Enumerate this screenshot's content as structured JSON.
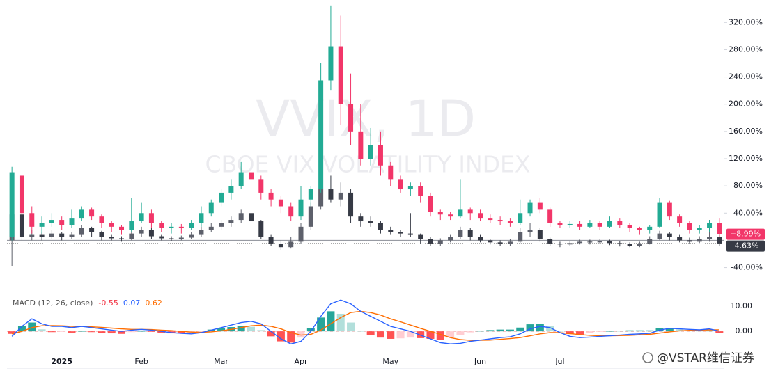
{
  "chart_data": [
    {
      "type": "candlestick",
      "watermark_title": "VVIX, 1D",
      "watermark_subtitle": "CBOE VIX VOLATILITY INDEX",
      "categories": [
        null,
        null,
        null,
        null,
        null,
        "2025",
        null,
        null,
        null,
        null,
        null,
        null,
        null,
        "Feb",
        null,
        null,
        null,
        null,
        null,
        null,
        null,
        "Mar",
        null,
        null,
        null,
        null,
        null,
        null,
        null,
        "Apr",
        null,
        null,
        null,
        null,
        null,
        null,
        null,
        null,
        "May",
        null,
        null,
        null,
        null,
        null,
        null,
        null,
        null,
        "Jun",
        null,
        null,
        null,
        null,
        null,
        null,
        null,
        "Jul",
        null,
        null,
        null,
        null,
        null,
        null,
        null,
        null,
        null,
        null,
        null,
        null,
        null,
        null,
        null,
        null
      ],
      "ylim": [
        -66,
        353
      ],
      "yticks": [
        {
          "value": 320,
          "label": "320.00%"
        },
        {
          "value": 280,
          "label": "280.00%"
        },
        {
          "value": 240,
          "label": "240.00%"
        },
        {
          "value": 200,
          "label": "200.00%"
        },
        {
          "value": 160,
          "label": "160.00%"
        },
        {
          "value": 120,
          "label": "120.00%"
        },
        {
          "value": 80,
          "label": "80.00%"
        },
        {
          "value": 40,
          "label": "40.00%"
        },
        {
          "value": -40,
          "label": "-40.00%"
        }
      ],
      "baseline": 0,
      "series": [
        {
          "up_color": "#22ab94",
          "down_color": "#f23669",
          "label_color": "#f23669",
          "price_label": "+8.99%",
          "open": [
            5,
            95,
            40,
            20,
            25,
            30,
            22,
            32,
            45,
            35,
            25,
            20,
            15,
            28,
            40,
            25,
            18,
            20,
            18,
            25,
            40,
            55,
            70,
            80,
            100,
            90,
            70,
            60,
            50,
            35,
            60,
            75,
            235,
            285,
            200,
            160,
            120,
            140,
            110,
            90,
            75,
            80,
            65,
            42,
            38,
            35,
            45,
            40,
            32,
            30,
            28,
            25,
            40,
            55,
            45,
            25,
            22,
            24,
            20,
            25,
            20,
            28,
            22,
            18,
            15,
            20,
            55,
            35,
            25,
            15,
            18,
            25
          ],
          "high": [
            108,
            95,
            50,
            35,
            40,
            35,
            45,
            50,
            48,
            38,
            28,
            22,
            62,
            55,
            45,
            28,
            25,
            24,
            30,
            50,
            60,
            75,
            90,
            115,
            105,
            95,
            75,
            65,
            55,
            80,
            80,
            260,
            345,
            330,
            245,
            200,
            165,
            160,
            115,
            95,
            85,
            85,
            70,
            45,
            42,
            90,
            48,
            45,
            38,
            35,
            32,
            60,
            60,
            62,
            48,
            28,
            28,
            28,
            30,
            28,
            35,
            32,
            25,
            20,
            22,
            62,
            58,
            38,
            28,
            22,
            30,
            32
          ],
          "low": [
            0,
            20,
            10,
            10,
            20,
            15,
            18,
            28,
            30,
            18,
            12,
            8,
            12,
            25,
            18,
            12,
            10,
            10,
            15,
            20,
            35,
            50,
            60,
            75,
            70,
            60,
            50,
            40,
            28,
            30,
            50,
            70,
            220,
            170,
            140,
            110,
            110,
            95,
            80,
            70,
            65,
            55,
            35,
            30,
            30,
            32,
            30,
            28,
            25,
            22,
            20,
            22,
            35,
            40,
            20,
            18,
            18,
            15,
            18,
            15,
            18,
            18,
            12,
            8,
            10,
            18,
            30,
            20,
            10,
            10,
            12,
            5
          ],
          "close": [
            100,
            40,
            20,
            25,
            30,
            22,
            32,
            45,
            35,
            25,
            20,
            15,
            28,
            40,
            25,
            18,
            20,
            18,
            25,
            40,
            55,
            70,
            80,
            100,
            90,
            70,
            60,
            50,
            35,
            60,
            75,
            235,
            285,
            200,
            160,
            120,
            140,
            110,
            90,
            75,
            80,
            65,
            42,
            38,
            35,
            45,
            40,
            32,
            30,
            28,
            25,
            40,
            55,
            45,
            25,
            22,
            24,
            20,
            25,
            20,
            28,
            22,
            18,
            15,
            20,
            55,
            35,
            25,
            15,
            18,
            25,
            8.99
          ]
        },
        {
          "up_color": "#5d606b",
          "down_color": "#363a45",
          "label_color": "#363a45",
          "price_label": "-4.63%",
          "open": [
            0,
            38,
            5,
            8,
            5,
            10,
            5,
            8,
            18,
            12,
            5,
            3,
            2,
            10,
            15,
            6,
            3,
            2,
            4,
            8,
            15,
            20,
            25,
            30,
            40,
            28,
            5,
            -5,
            -10,
            -2,
            20,
            50,
            75,
            60,
            70,
            35,
            28,
            25,
            15,
            12,
            10,
            8,
            2,
            -5,
            0,
            5,
            15,
            5,
            0,
            -3,
            -5,
            -2,
            12,
            15,
            2,
            -5,
            -6,
            -4,
            -2,
            -3,
            -1,
            -4,
            -5,
            -8,
            -5,
            2,
            10,
            5,
            0,
            -2,
            2,
            5
          ],
          "high": [
            40,
            40,
            15,
            12,
            15,
            12,
            12,
            22,
            20,
            14,
            8,
            6,
            18,
            20,
            18,
            8,
            6,
            7,
            12,
            20,
            25,
            30,
            35,
            45,
            42,
            30,
            8,
            0,
            5,
            25,
            55,
            80,
            95,
            85,
            75,
            40,
            35,
            28,
            20,
            15,
            40,
            10,
            5,
            3,
            8,
            20,
            18,
            8,
            2,
            0,
            2,
            18,
            25,
            18,
            4,
            -2,
            -1,
            1,
            1,
            2,
            1,
            -1,
            -3,
            -2,
            6,
            14,
            12,
            8,
            4,
            6,
            30,
            8
          ],
          "low": [
            -38,
            0,
            0,
            0,
            2,
            0,
            2,
            5,
            5,
            0,
            0,
            -2,
            0,
            5,
            2,
            0,
            -1,
            0,
            2,
            5,
            12,
            15,
            20,
            25,
            22,
            2,
            -8,
            -14,
            -12,
            -5,
            15,
            45,
            55,
            50,
            25,
            20,
            20,
            10,
            8,
            5,
            5,
            -5,
            -8,
            -8,
            -3,
            2,
            0,
            -3,
            -6,
            -8,
            -8,
            -4,
            5,
            -2,
            -8,
            -10,
            -8,
            -6,
            -6,
            -5,
            -7,
            -9,
            -10,
            -10,
            -6,
            0,
            0,
            -3,
            -5,
            -4,
            -2,
            -8
          ],
          "close": [
            38,
            5,
            8,
            5,
            10,
            5,
            8,
            18,
            12,
            5,
            3,
            2,
            10,
            15,
            6,
            3,
            2,
            4,
            8,
            15,
            20,
            25,
            30,
            40,
            28,
            5,
            -5,
            -10,
            -2,
            20,
            50,
            75,
            60,
            70,
            35,
            28,
            25,
            15,
            12,
            10,
            8,
            2,
            -5,
            0,
            5,
            15,
            5,
            0,
            -3,
            -5,
            -2,
            12,
            15,
            2,
            -5,
            -6,
            -4,
            -2,
            -3,
            -1,
            -4,
            -5,
            -8,
            -5,
            2,
            10,
            5,
            0,
            -2,
            2,
            5,
            -4.63
          ]
        }
      ]
    },
    {
      "type": "macd",
      "title": "MACD (12, 26, close)",
      "ylim": [
        -9.4,
        15.6
      ],
      "yticks": [
        {
          "value": 10,
          "label": "10.00"
        },
        {
          "value": 0,
          "label": "0.00"
        }
      ],
      "histogram": {
        "color": "#f23645",
        "colors": {
          "up_rising": "#26a69a",
          "up_falling": "#b2dfdb",
          "down_falling": "#ff5252",
          "down_rising": "#ffcdd2"
        },
        "values": [
          -1,
          2,
          3.5,
          0.8,
          -0.3,
          -0.2,
          -0.5,
          0,
          -0.3,
          -0.6,
          -0.8,
          -1,
          -0.3,
          0,
          -0.2,
          -0.5,
          -0.8,
          -0.8,
          -0.7,
          -0.1,
          0.7,
          1.3,
          1.7,
          2,
          1.8,
          0.5,
          -2,
          -4,
          -4.5,
          -2.5,
          1.2,
          5.5,
          8,
          7,
          3.5,
          0,
          -1.5,
          -2.5,
          -3,
          -2.8,
          -2.5,
          -2.7,
          -3,
          -3.3,
          -2.5,
          -1.5,
          -0.4,
          0.1,
          0.5,
          0.7,
          0.7,
          1.5,
          2.8,
          3,
          2,
          0,
          -1.1,
          -1.2,
          -0.7,
          -0.2,
          0,
          0.2,
          0.4,
          0.4,
          0.4,
          1.2,
          1.4,
          0.8,
          0.4,
          0.1,
          0.4,
          -0.55
        ]
      },
      "macd": {
        "color": "#2962ff",
        "values": [
          -2,
          2,
          5,
          3,
          2,
          2,
          1.5,
          2,
          1.5,
          1,
          0.5,
          0,
          0.5,
          0.8,
          0.5,
          0,
          -0.5,
          -0.8,
          -1,
          -0.5,
          0.5,
          1.5,
          2.5,
          3.5,
          4,
          3,
          0,
          -3,
          -5,
          -4,
          0,
          6,
          11,
          12.5,
          11,
          8,
          6,
          4,
          2,
          1,
          0,
          -1.5,
          -3,
          -4.5,
          -5,
          -4.8,
          -4,
          -3.5,
          -3,
          -2.5,
          -2.2,
          -1,
          1,
          2,
          1.5,
          -0.5,
          -2,
          -2.5,
          -2.3,
          -2,
          -1.8,
          -1.5,
          -1.2,
          -1,
          -0.8,
          0.5,
          1.2,
          1,
          0.8,
          0.6,
          1,
          0.07
        ]
      },
      "signal": {
        "color": "#ff6d00",
        "values": [
          -1,
          0,
          1.5,
          2.2,
          2.3,
          2.2,
          2,
          2,
          1.8,
          1.6,
          1.3,
          1,
          0.8,
          0.8,
          0.7,
          0.5,
          0.3,
          0,
          -0.3,
          -0.4,
          -0.2,
          0.2,
          0.8,
          1.5,
          2.2,
          2.5,
          2,
          1,
          -0.5,
          -1.5,
          -1.2,
          0.5,
          3,
          5.5,
          7.5,
          8,
          7.5,
          6.5,
          5,
          3.8,
          2.5,
          1.2,
          0,
          -1.2,
          -2.5,
          -3.3,
          -3.6,
          -3.6,
          -3.5,
          -3.2,
          -2.9,
          -2.5,
          -1.8,
          -1,
          -0.5,
          -0.5,
          -0.9,
          -1.3,
          -1.6,
          -1.8,
          -1.8,
          -1.7,
          -1.6,
          -1.4,
          -1.2,
          -0.7,
          -0.2,
          0.2,
          0.4,
          0.5,
          0.6,
          0.62
        ]
      }
    },
    "@VSTAR维信证券"
  ]
}
